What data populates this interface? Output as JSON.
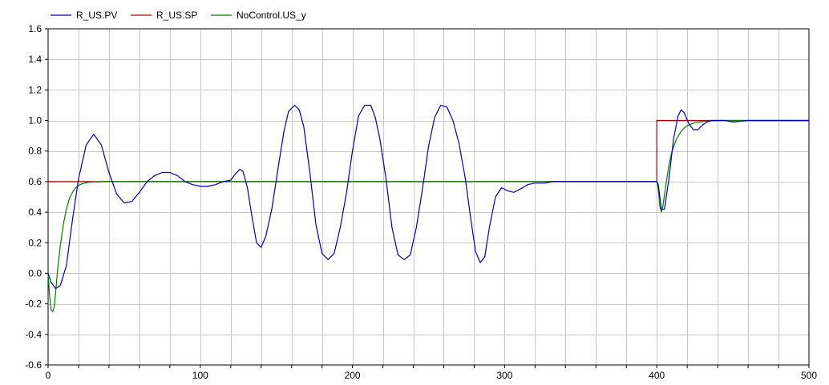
{
  "chart_data": {
    "type": "line",
    "title": "",
    "xlabel": "",
    "ylabel": "",
    "xlim": [
      0,
      500
    ],
    "ylim": [
      -0.6,
      1.6
    ],
    "grid": true,
    "legend_position": "top-left",
    "x_ticks": [
      0,
      100,
      200,
      300,
      400,
      500
    ],
    "x_tick_labels": [
      "0",
      "100",
      "200",
      "300",
      "400",
      "500"
    ],
    "x_minor_step": 20,
    "y_ticks": [
      -0.6,
      -0.4,
      -0.2,
      0.0,
      0.2,
      0.4,
      0.6,
      0.8,
      1.0,
      1.2,
      1.4,
      1.6
    ],
    "y_tick_labels": [
      "-0.6",
      "-0.4",
      "-0.2",
      "0.0",
      "0.2",
      "0.4",
      "0.6",
      "0.8",
      "1.0",
      "1.2",
      "1.4",
      "1.6"
    ],
    "series": [
      {
        "name": "R_US.PV",
        "color": "#0000b4",
        "x": [
          0,
          2,
          5,
          8,
          12,
          16,
          20,
          25,
          30,
          35,
          40,
          45,
          50,
          55,
          60,
          65,
          70,
          75,
          80,
          85,
          90,
          95,
          100,
          105,
          110,
          115,
          120,
          123,
          126,
          128,
          131,
          134,
          137,
          140,
          143,
          147,
          151,
          155,
          158,
          162,
          165,
          168,
          172,
          176,
          180,
          184,
          188,
          192,
          196,
          200,
          204,
          208,
          212,
          215,
          218,
          222,
          226,
          230,
          234,
          238,
          242,
          246,
          250,
          254,
          258,
          262,
          266,
          270,
          274,
          278,
          281,
          284,
          287,
          290,
          294,
          298,
          302,
          306,
          310,
          315,
          320,
          326,
          332,
          336,
          340,
          350,
          360,
          370,
          380,
          390,
          400,
          401,
          402,
          403,
          405,
          408,
          411,
          414,
          416,
          418,
          421,
          424,
          427,
          430,
          433,
          436,
          440,
          445,
          450,
          460,
          480,
          500
        ],
        "y": [
          0.0,
          -0.06,
          -0.1,
          -0.08,
          0.05,
          0.35,
          0.62,
          0.84,
          0.91,
          0.84,
          0.66,
          0.52,
          0.46,
          0.47,
          0.53,
          0.6,
          0.64,
          0.66,
          0.66,
          0.64,
          0.6,
          0.58,
          0.57,
          0.57,
          0.58,
          0.6,
          0.61,
          0.65,
          0.68,
          0.67,
          0.56,
          0.37,
          0.2,
          0.17,
          0.24,
          0.42,
          0.68,
          0.93,
          1.06,
          1.1,
          1.07,
          0.96,
          0.66,
          0.32,
          0.13,
          0.09,
          0.13,
          0.3,
          0.52,
          0.8,
          1.03,
          1.1,
          1.1,
          1.02,
          0.88,
          0.62,
          0.3,
          0.12,
          0.09,
          0.12,
          0.3,
          0.55,
          0.83,
          1.02,
          1.1,
          1.09,
          1.0,
          0.85,
          0.63,
          0.34,
          0.14,
          0.07,
          0.11,
          0.3,
          0.5,
          0.56,
          0.54,
          0.53,
          0.55,
          0.58,
          0.59,
          0.59,
          0.6,
          0.6,
          0.6,
          0.6,
          0.6,
          0.6,
          0.6,
          0.6,
          0.6,
          0.58,
          0.5,
          0.42,
          0.42,
          0.62,
          0.88,
          1.03,
          1.07,
          1.05,
          0.98,
          0.94,
          0.94,
          0.97,
          0.99,
          1.0,
          1.0,
          1.0,
          0.99,
          1.0,
          1.0,
          1.0
        ]
      },
      {
        "name": "R_US.SP",
        "color": "#b40000",
        "x": [
          0,
          400,
          400,
          500
        ],
        "y": [
          0.6,
          0.6,
          1.0,
          1.0
        ]
      },
      {
        "name": "NoControl.US_y",
        "color": "#008000",
        "x": [
          0,
          1,
          2,
          3,
          4,
          5,
          6,
          8,
          10,
          12,
          14,
          16,
          18,
          20,
          22,
          24,
          26,
          28,
          30,
          33,
          36,
          40,
          60,
          100,
          150,
          200,
          250,
          300,
          350,
          400,
          401,
          402,
          403,
          404,
          406,
          408,
          410,
          413,
          416,
          419,
          422,
          425,
          428,
          432,
          436,
          440,
          450,
          500
        ],
        "y": [
          0.0,
          -0.15,
          -0.24,
          -0.25,
          -0.22,
          -0.12,
          0.0,
          0.18,
          0.32,
          0.42,
          0.49,
          0.53,
          0.56,
          0.575,
          0.585,
          0.59,
          0.595,
          0.597,
          0.598,
          0.599,
          0.6,
          0.6,
          0.6,
          0.6,
          0.6,
          0.6,
          0.6,
          0.6,
          0.6,
          0.6,
          0.55,
          0.44,
          0.4,
          0.44,
          0.58,
          0.71,
          0.8,
          0.88,
          0.93,
          0.96,
          0.975,
          0.985,
          0.99,
          0.995,
          0.998,
          1.0,
          1.0,
          1.0
        ]
      }
    ]
  }
}
